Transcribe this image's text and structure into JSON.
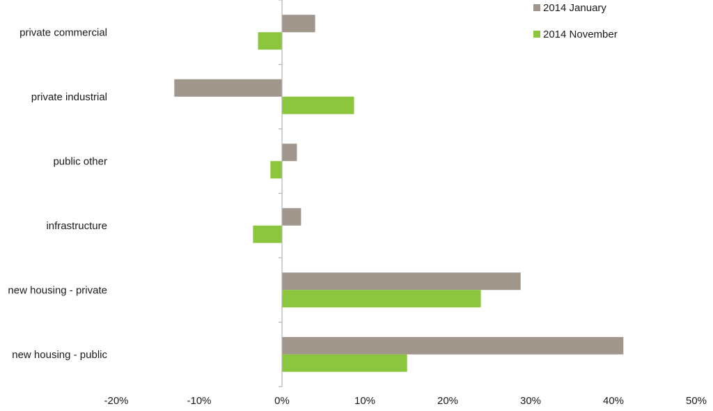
{
  "chart_data": {
    "type": "bar",
    "orientation": "horizontal",
    "categories": [
      "private commercial",
      "private industrial",
      "public other",
      "infrastructure",
      "new housing - private",
      "new housing - public"
    ],
    "series": [
      {
        "name": "2014 January",
        "color": "#a0968c",
        "values": [
          4.0,
          -13.0,
          1.8,
          2.3,
          28.8,
          41.2
        ]
      },
      {
        "name": "2014 November",
        "color": "#8cc63f",
        "values": [
          -2.9,
          8.7,
          -1.4,
          -3.5,
          24.0,
          15.1
        ]
      }
    ],
    "xlim": [
      -20,
      50
    ],
    "xticks": [
      -20,
      -10,
      0,
      10,
      20,
      30,
      40,
      50
    ],
    "tick_labels": [
      "-20%",
      "-10%",
      "0%",
      "10%",
      "20%",
      "30%",
      "40%",
      "50%"
    ],
    "grid": false,
    "legend_position": "top-right"
  }
}
